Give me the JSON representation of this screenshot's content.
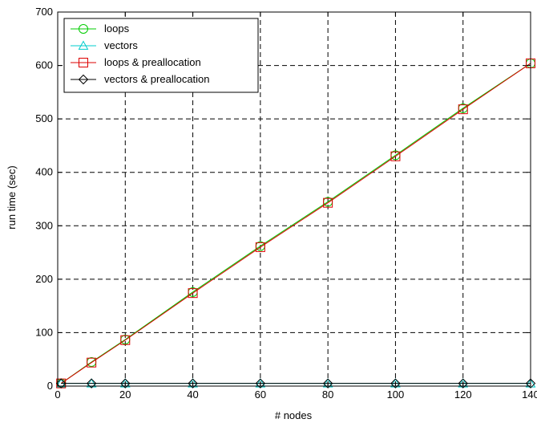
{
  "chart_data": {
    "type": "line",
    "title": "",
    "xlabel": "# nodes",
    "ylabel": "run time (sec)",
    "xlim": [
      0,
      140
    ],
    "ylim": [
      0,
      700
    ],
    "xticks": [
      0,
      20,
      40,
      60,
      80,
      100,
      120,
      140
    ],
    "yticks": [
      0,
      100,
      200,
      300,
      400,
      500,
      600,
      700
    ],
    "xtick_labels": [
      "0",
      "20",
      "40",
      "60",
      "80",
      "100",
      "120",
      "140"
    ],
    "ytick_labels": [
      "0",
      "100",
      "200",
      "300",
      "400",
      "500",
      "600",
      "700"
    ],
    "grid": true,
    "legend_position": "top-left",
    "x": [
      1,
      10,
      20,
      40,
      60,
      80,
      100,
      120,
      140
    ],
    "series": [
      {
        "name": "loops",
        "color": "#00cc00",
        "marker": "circle",
        "values": [
          5,
          45,
          87,
          176,
          262,
          345,
          432,
          520,
          604
        ]
      },
      {
        "name": "vectors",
        "color": "#00cccc",
        "marker": "triangle",
        "values": [
          5,
          5,
          5,
          5,
          5,
          5,
          5,
          5,
          5
        ]
      },
      {
        "name": "loops & preallocation",
        "color": "#dd0000",
        "marker": "square",
        "values": [
          5,
          44,
          86,
          174,
          260,
          343,
          430,
          518,
          604
        ]
      },
      {
        "name": "vectors & preallocation",
        "color": "#000000",
        "marker": "diamond",
        "values": [
          5,
          5,
          5,
          5,
          5,
          5,
          5,
          5,
          5
        ]
      }
    ]
  }
}
